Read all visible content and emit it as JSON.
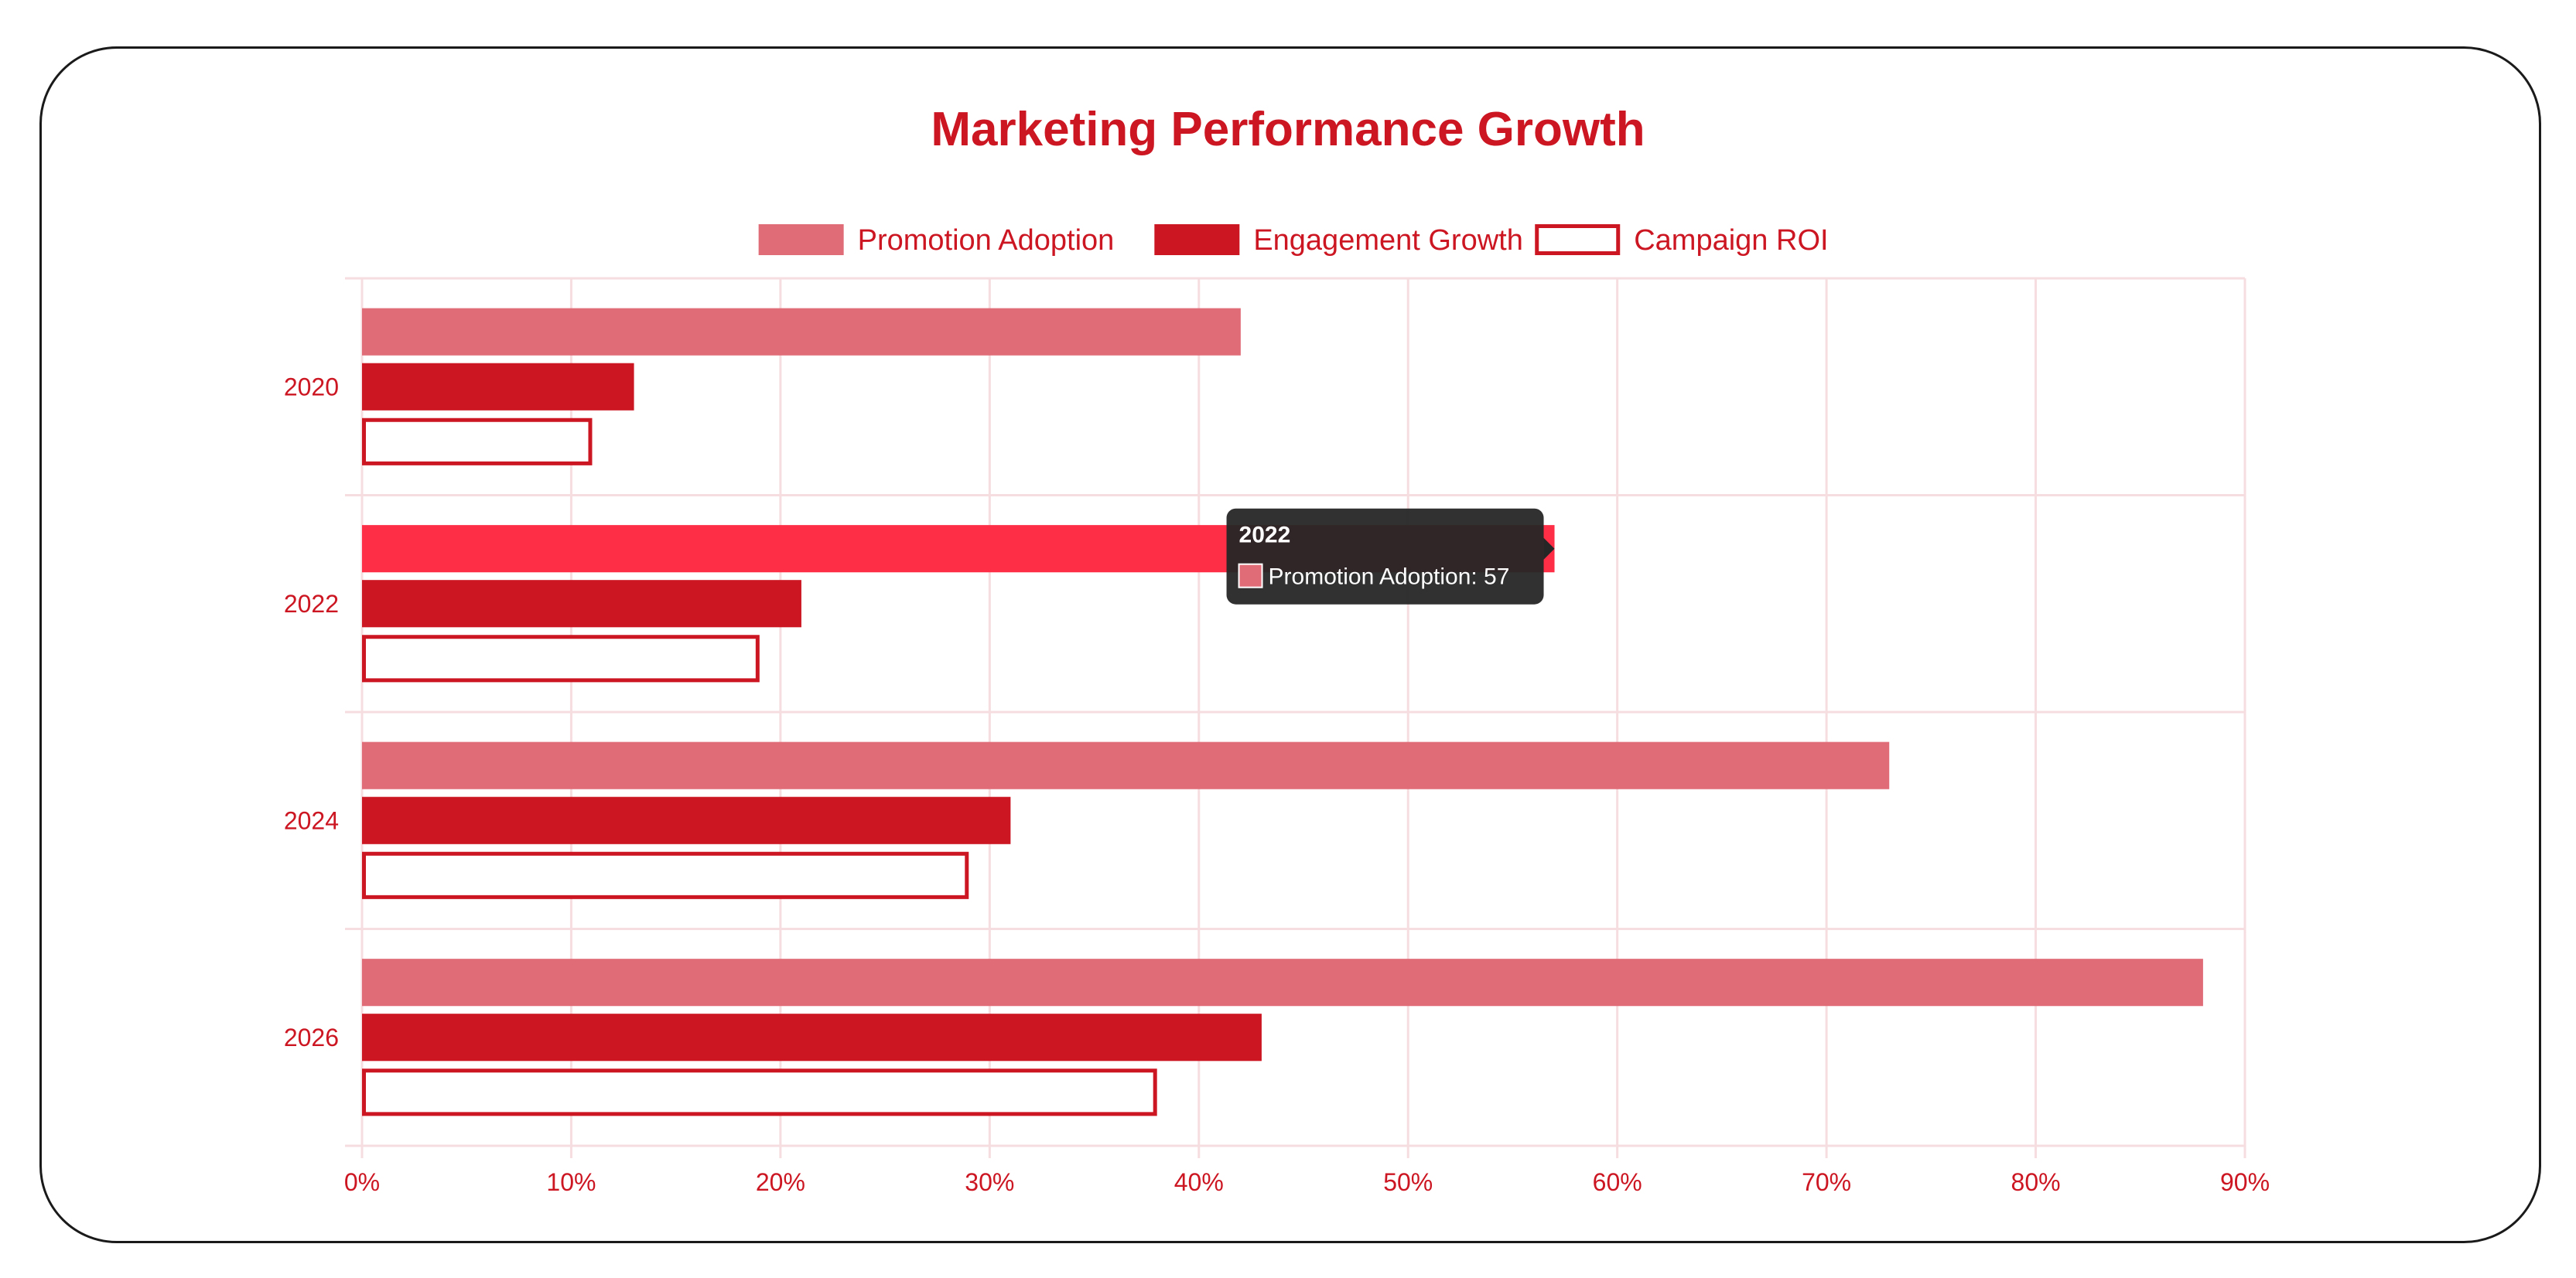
{
  "chart_data": {
    "type": "bar",
    "orientation": "horizontal",
    "title": "Marketing Performance Growth",
    "categories": [
      "2020",
      "2022",
      "2024",
      "2026"
    ],
    "series": [
      {
        "name": "Promotion Adoption",
        "values": [
          42,
          57,
          73,
          88
        ],
        "color": "#e06c78",
        "style": "filled"
      },
      {
        "name": "Engagement Growth",
        "values": [
          13,
          21,
          31,
          43
        ],
        "color": "#cc1622",
        "style": "filled"
      },
      {
        "name": "Campaign ROI",
        "values": [
          11,
          19,
          29,
          38
        ],
        "color": "#cc1622",
        "style": "outline"
      }
    ],
    "x_ticks": [
      "0%",
      "10%",
      "20%",
      "30%",
      "40%",
      "50%",
      "60%",
      "70%",
      "80%",
      "90%"
    ],
    "xlim": [
      0,
      90
    ],
    "xlabel": "",
    "ylabel": "",
    "grid": true,
    "legend_position": "top",
    "highlight_color": "#fd2e45",
    "tooltip": {
      "title": "2022",
      "label": "Promotion Adoption: 57",
      "category_index": 1,
      "series_index": 0
    }
  },
  "colors": {
    "title": "#cc1622",
    "text": "#cc1622",
    "grid": "#f5dde0",
    "tooltip_bg": "#262626",
    "tooltip_text": "#ffffff"
  }
}
